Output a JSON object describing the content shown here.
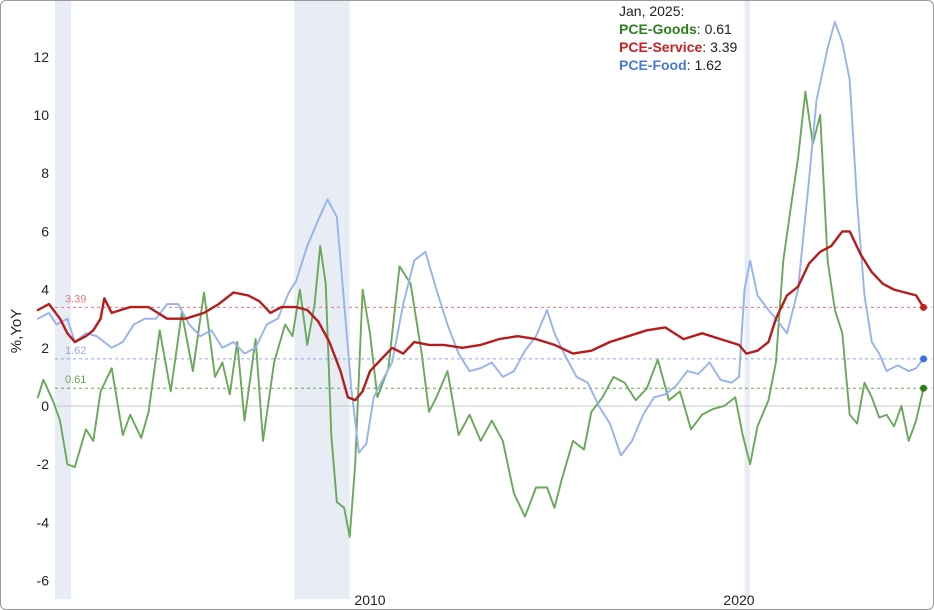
{
  "chart_data": {
    "type": "line",
    "ylabel": "%,YoY",
    "xlabel": "",
    "y_range": [
      -6,
      13.5
    ],
    "x_range": [
      2001.0,
      2025.1
    ],
    "y_ticks": [
      -6,
      -4,
      -2,
      0,
      2,
      4,
      6,
      8,
      10,
      12
    ],
    "x_ticks": [
      {
        "value": 2010,
        "label": "2010"
      },
      {
        "value": 2020,
        "label": "2020"
      }
    ],
    "grid": false,
    "legend_position": "top-right",
    "legend": {
      "date": "Jan, 2025:",
      "items": [
        {
          "name": "PCE-Goods",
          "value": "0.61",
          "color": "#2e7d1e"
        },
        {
          "name": "PCE-Service",
          "value": "3.39",
          "color": "#c62020"
        },
        {
          "name": "PCE-Food",
          "value": "1.62",
          "color": "#4a78d8"
        }
      ]
    },
    "recessions": [
      [
        2001.2,
        2001.9
      ],
      [
        2007.95,
        2009.45
      ],
      [
        2020.15,
        2020.3
      ]
    ],
    "reference_lines": [
      {
        "value": 3.39,
        "label": "3.39",
        "color": "#e07a7a"
      },
      {
        "value": 1.62,
        "label": "1.62",
        "color": "#8fa8e8"
      },
      {
        "value": 0.61,
        "label": "0.61",
        "color": "#6aa85a"
      }
    ],
    "series": [
      {
        "name": "PCE-Goods",
        "color": "#6aa85a",
        "end_color": "#2e7d1e",
        "x": [
          2001.0,
          2001.15,
          2001.4,
          2001.6,
          2001.8,
          2002.0,
          2002.3,
          2002.5,
          2002.7,
          2003.0,
          2003.3,
          2003.5,
          2003.8,
          2004.0,
          2004.3,
          2004.6,
          2004.9,
          2005.2,
          2005.5,
          2005.8,
          2006.0,
          2006.2,
          2006.4,
          2006.6,
          2006.9,
          2007.1,
          2007.4,
          2007.7,
          2007.9,
          2008.1,
          2008.3,
          2008.5,
          2008.65,
          2008.8,
          2008.95,
          2009.1,
          2009.3,
          2009.45,
          2009.6,
          2009.8,
          2010.0,
          2010.2,
          2010.5,
          2010.8,
          2011.1,
          2011.4,
          2011.6,
          2011.8,
          2012.1,
          2012.4,
          2012.7,
          2013.0,
          2013.3,
          2013.6,
          2013.9,
          2014.2,
          2014.5,
          2014.8,
          2015.0,
          2015.2,
          2015.5,
          2015.8,
          2016.0,
          2016.3,
          2016.6,
          2016.9,
          2017.2,
          2017.5,
          2017.8,
          2018.1,
          2018.4,
          2018.7,
          2019.0,
          2019.3,
          2019.6,
          2019.9,
          2020.1,
          2020.3,
          2020.5,
          2020.8,
          2021.0,
          2021.2,
          2021.4,
          2021.6,
          2021.8,
          2022.0,
          2022.2,
          2022.4,
          2022.6,
          2022.8,
          2023.0,
          2023.2,
          2023.4,
          2023.6,
          2023.8,
          2024.0,
          2024.2,
          2024.4,
          2024.6,
          2024.8,
          2025.0
        ],
        "y": [
          0.3,
          0.9,
          0.2,
          -0.5,
          -2.0,
          -2.1,
          -0.8,
          -1.2,
          0.5,
          1.3,
          -1.0,
          -0.3,
          -1.1,
          -0.2,
          2.6,
          0.5,
          3.2,
          1.2,
          3.9,
          1.0,
          1.5,
          0.4,
          2.2,
          -0.5,
          2.3,
          -1.2,
          1.5,
          2.8,
          2.4,
          4.0,
          2.1,
          3.5,
          5.5,
          4.2,
          -1.0,
          -3.3,
          -3.5,
          -4.5,
          -2.0,
          4.0,
          2.5,
          0.3,
          1.3,
          4.8,
          4.2,
          1.8,
          -0.2,
          0.3,
          1.2,
          -1.0,
          -0.3,
          -1.2,
          -0.5,
          -1.2,
          -3.0,
          -3.8,
          -2.8,
          -2.8,
          -3.5,
          -2.5,
          -1.2,
          -1.5,
          -0.2,
          0.3,
          1.0,
          0.8,
          0.2,
          0.6,
          1.6,
          0.2,
          0.5,
          -0.8,
          -0.3,
          -0.1,
          0.0,
          0.3,
          -1.0,
          -2.0,
          -0.7,
          0.2,
          1.5,
          5.0,
          6.8,
          8.5,
          10.8,
          9.0,
          10.0,
          5.0,
          3.3,
          2.5,
          -0.3,
          -0.6,
          0.8,
          0.3,
          -0.4,
          -0.3,
          -0.7,
          0.0,
          -1.2,
          -0.5,
          0.61
        ]
      },
      {
        "name": "PCE-Food",
        "color": "#98b2ee",
        "end_color": "#3c6fe0",
        "x": [
          2001.0,
          2001.3,
          2001.5,
          2001.8,
          2002.0,
          2002.3,
          2002.6,
          2003.0,
          2003.3,
          2003.6,
          2003.9,
          2004.2,
          2004.5,
          2004.8,
          2005.1,
          2005.4,
          2005.7,
          2006.0,
          2006.3,
          2006.6,
          2006.9,
          2007.2,
          2007.5,
          2007.8,
          2008.0,
          2008.3,
          2008.6,
          2008.85,
          2009.1,
          2009.3,
          2009.5,
          2009.7,
          2009.9,
          2010.1,
          2010.3,
          2010.6,
          2010.9,
          2011.2,
          2011.5,
          2011.8,
          2012.1,
          2012.4,
          2012.7,
          2013.0,
          2013.3,
          2013.6,
          2013.9,
          2014.2,
          2014.5,
          2014.8,
          2015.0,
          2015.3,
          2015.6,
          2015.9,
          2016.2,
          2016.5,
          2016.8,
          2017.1,
          2017.4,
          2017.7,
          2018.0,
          2018.3,
          2018.6,
          2018.9,
          2019.2,
          2019.5,
          2019.8,
          2020.0,
          2020.15,
          2020.3,
          2020.5,
          2020.8,
          2021.0,
          2021.3,
          2021.6,
          2021.9,
          2022.1,
          2022.4,
          2022.6,
          2022.8,
          2023.0,
          2023.2,
          2023.4,
          2023.6,
          2023.8,
          2024.0,
          2024.3,
          2024.6,
          2024.8,
          2025.0
        ],
        "y": [
          3.0,
          3.2,
          2.8,
          3.0,
          2.2,
          2.5,
          2.4,
          2.0,
          2.2,
          2.8,
          3.0,
          3.0,
          3.5,
          3.5,
          2.8,
          2.4,
          2.6,
          2.0,
          2.2,
          1.8,
          2.0,
          2.8,
          3.0,
          3.9,
          4.3,
          5.5,
          6.4,
          7.1,
          6.5,
          3.5,
          0.5,
          -1.6,
          -1.3,
          0.3,
          0.8,
          1.5,
          3.5,
          5.0,
          5.3,
          4.0,
          2.8,
          1.8,
          1.2,
          1.3,
          1.5,
          1.0,
          1.2,
          1.9,
          2.4,
          3.3,
          2.5,
          1.7,
          1.0,
          0.8,
          0.0,
          -0.6,
          -1.7,
          -1.2,
          -0.3,
          0.3,
          0.4,
          0.7,
          1.2,
          1.1,
          1.5,
          0.9,
          0.8,
          1.0,
          4.0,
          5.0,
          3.8,
          3.3,
          3.0,
          2.5,
          4.0,
          7.8,
          10.5,
          12.3,
          13.2,
          12.5,
          11.2,
          7.0,
          3.8,
          2.2,
          1.8,
          1.2,
          1.4,
          1.2,
          1.3,
          1.62
        ]
      },
      {
        "name": "PCE-Service",
        "color": "#b71c1c",
        "end_color": "#c62020",
        "x": [
          2001.0,
          2001.3,
          2001.6,
          2001.8,
          2002.0,
          2002.3,
          2002.5,
          2002.7,
          2002.8,
          2003.0,
          2003.5,
          2004.0,
          2004.5,
          2005.0,
          2005.5,
          2005.9,
          2006.3,
          2006.7,
          2007.0,
          2007.3,
          2007.6,
          2008.0,
          2008.3,
          2008.6,
          2008.9,
          2009.2,
          2009.4,
          2009.6,
          2009.8,
          2010.0,
          2010.3,
          2010.6,
          2010.9,
          2011.2,
          2011.6,
          2012.0,
          2012.5,
          2013.0,
          2013.5,
          2014.0,
          2014.5,
          2015.0,
          2015.5,
          2016.0,
          2016.5,
          2017.0,
          2017.5,
          2018.0,
          2018.5,
          2019.0,
          2019.5,
          2020.0,
          2020.2,
          2020.5,
          2020.8,
          2021.0,
          2021.3,
          2021.6,
          2021.9,
          2022.2,
          2022.5,
          2022.8,
          2023.0,
          2023.3,
          2023.6,
          2023.9,
          2024.2,
          2024.5,
          2024.8,
          2025.0
        ],
        "y": [
          3.3,
          3.5,
          3.0,
          2.5,
          2.2,
          2.4,
          2.6,
          3.0,
          3.7,
          3.2,
          3.4,
          3.4,
          3.0,
          3.0,
          3.2,
          3.5,
          3.9,
          3.8,
          3.6,
          3.2,
          3.4,
          3.4,
          3.3,
          2.9,
          2.2,
          1.2,
          0.3,
          0.2,
          0.5,
          1.2,
          1.6,
          2.0,
          1.8,
          2.2,
          2.1,
          2.1,
          2.0,
          2.1,
          2.3,
          2.4,
          2.3,
          2.1,
          1.8,
          1.9,
          2.2,
          2.4,
          2.6,
          2.7,
          2.3,
          2.5,
          2.3,
          2.1,
          1.8,
          1.9,
          2.2,
          3.0,
          3.8,
          4.1,
          4.9,
          5.3,
          5.5,
          6.0,
          6.0,
          5.2,
          4.6,
          4.2,
          4.0,
          3.9,
          3.8,
          3.39
        ]
      }
    ]
  }
}
